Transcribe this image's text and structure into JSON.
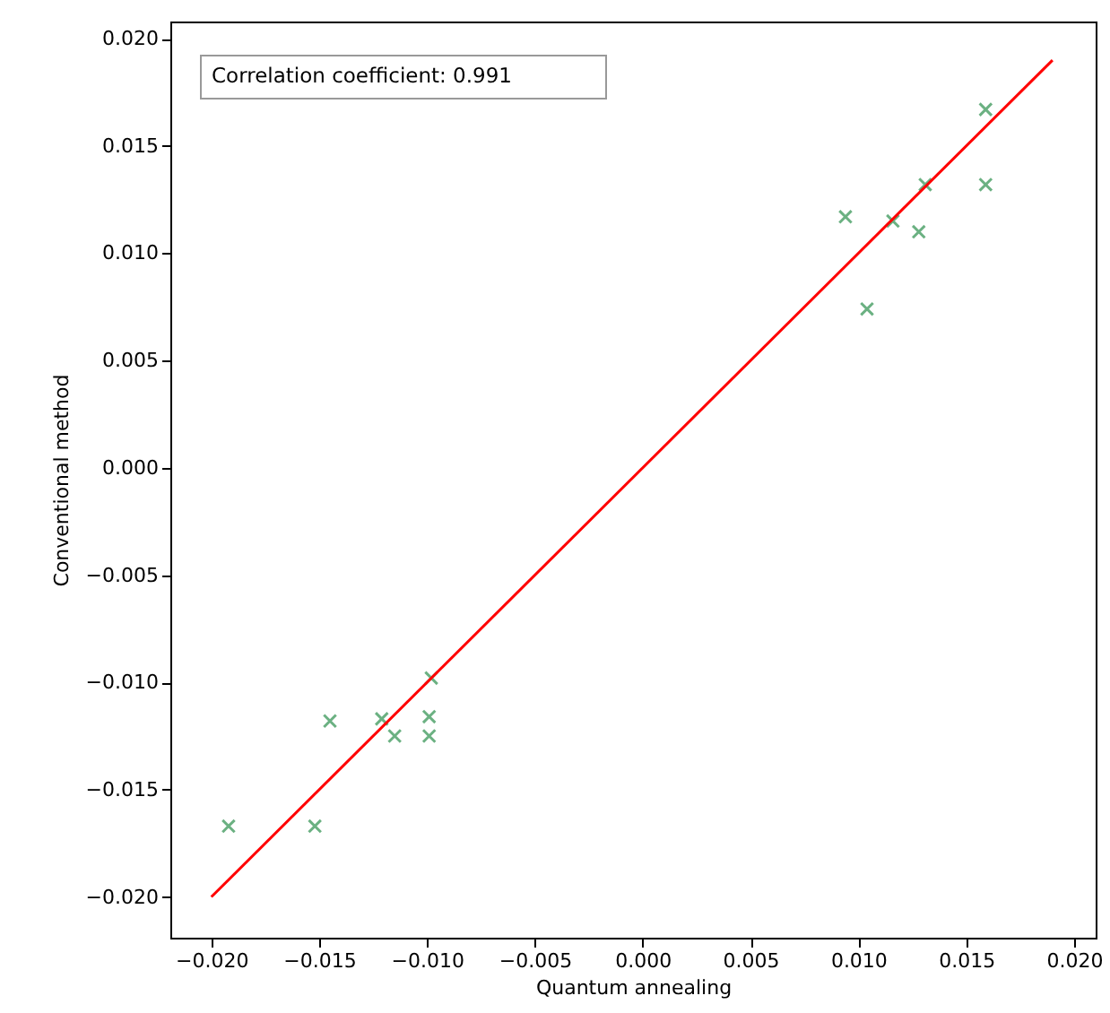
{
  "chart_data": {
    "type": "scatter",
    "xlabel": "Quantum annealing",
    "ylabel": "Conventional method",
    "annotations": [
      "Correlation coefficient: 0.991"
    ],
    "xlim": [
      -0.0219,
      0.021
    ],
    "ylim": [
      -0.0219,
      0.0208
    ],
    "xticks": [
      {
        "value": -0.02,
        "label": "−0.020"
      },
      {
        "value": -0.015,
        "label": "−0.015"
      },
      {
        "value": -0.01,
        "label": "−0.010"
      },
      {
        "value": -0.005,
        "label": "−0.005"
      },
      {
        "value": 0,
        "label": "0.000"
      },
      {
        "value": 0.005,
        "label": "0.005"
      },
      {
        "value": 0.01,
        "label": "0.010"
      },
      {
        "value": 0.015,
        "label": "0.015"
      },
      {
        "value": 0.02,
        "label": "0.020"
      }
    ],
    "yticks": [
      {
        "value": -0.02,
        "label": "−0.020"
      },
      {
        "value": -0.015,
        "label": "−0.015"
      },
      {
        "value": -0.01,
        "label": "−0.010"
      },
      {
        "value": -0.005,
        "label": "−0.005"
      },
      {
        "value": 0,
        "label": "0.000"
      },
      {
        "value": 0.005,
        "label": "0.005"
      },
      {
        "value": 0.01,
        "label": "0.010"
      },
      {
        "value": 0.015,
        "label": "0.015"
      },
      {
        "value": 0.02,
        "label": "0.020"
      }
    ],
    "grid": false,
    "series": [
      {
        "color": "#64ad7c",
        "marker": "cross",
        "x": [
          -0.0192,
          -0.0152,
          -0.0145,
          -0.0121,
          -0.0115,
          -0.0099,
          -0.0099,
          -0.0098,
          0.0094,
          0.0104,
          0.0116,
          0.0128,
          0.0131,
          0.0159,
          0.0159
        ],
        "values": [
          -0.0167,
          -0.0167,
          -0.0118,
          -0.0117,
          -0.0125,
          -0.0116,
          -0.0125,
          -0.0098,
          0.0117,
          0.0074,
          0.0115,
          0.011,
          0.0132,
          0.0167,
          0.0132
        ]
      },
      {
        "type": "line",
        "color": "#ff0000",
        "line_style": "solid",
        "x": [
          -0.02,
          0.019
        ],
        "values": [
          -0.02,
          0.019
        ]
      }
    ]
  }
}
